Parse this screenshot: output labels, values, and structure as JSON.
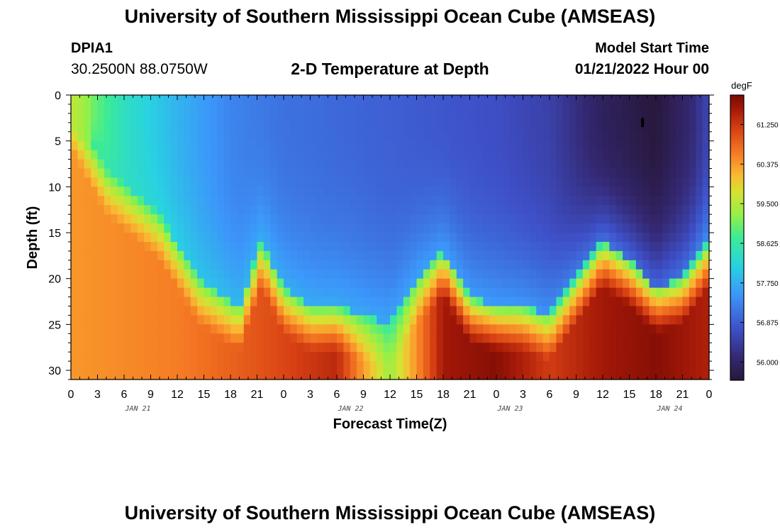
{
  "header": {
    "title": "University of Southern Mississippi Ocean Cube (AMSEAS)",
    "station_id": "DPIA1",
    "station_coords": "30.2500N  88.0750W",
    "chart_title": "2-D Temperature at Depth",
    "model_start_label": "Model Start Time",
    "model_start_value": "01/21/2022 Hour 00"
  },
  "footer": {
    "title": "University of Southern Mississippi Ocean Cube (AMSEAS)"
  },
  "chart_data": {
    "type": "heatmap",
    "title": "2-D Temperature at Depth",
    "xlabel": "Forecast Time(Z)",
    "ylabel": "Depth (ft)",
    "units": "degF",
    "x_range_hours": [
      0,
      72
    ],
    "y_range_ft": [
      0,
      31
    ],
    "x_tick_labels": [
      "0",
      "3",
      "6",
      "9",
      "12",
      "15",
      "18",
      "21",
      "0",
      "3",
      "6",
      "9",
      "12",
      "15",
      "18",
      "21",
      "0",
      "3",
      "6",
      "9",
      "12",
      "15",
      "18",
      "21",
      "0"
    ],
    "date_labels": [
      {
        "hour": 9,
        "label": "JAN 21"
      },
      {
        "hour": 33,
        "label": "JAN 22"
      },
      {
        "hour": 51,
        "label": "JAN 23"
      },
      {
        "hour": 69,
        "label": "JAN 24"
      }
    ],
    "y_ticks": [
      0,
      5,
      10,
      15,
      20,
      25,
      30
    ],
    "colorbar": {
      "min": 55.6,
      "max": 61.9,
      "tick_values": [
        61.25,
        60.375,
        59.5,
        58.625,
        57.75,
        56.875,
        56.0
      ],
      "tick_labels": [
        "61.250",
        "60.375",
        "59.500",
        "58.625",
        "57.750",
        "56.875",
        "56.000"
      ]
    },
    "thermocline_depth_ft": [
      {
        "hour": 0,
        "depth": 1
      },
      {
        "hour": 4,
        "depth": 8
      },
      {
        "hour": 10,
        "depth": 13
      },
      {
        "hour": 14.5,
        "depth": 20
      },
      {
        "hour": 19,
        "depth": 23
      },
      {
        "hour": 21.5,
        "depth": 16
      },
      {
        "hour": 24,
        "depth": 21
      },
      {
        "hour": 27,
        "depth": 23
      },
      {
        "hour": 30,
        "depth": 23
      },
      {
        "hour": 33,
        "depth": 24
      },
      {
        "hour": 36,
        "depth": 25
      },
      {
        "hour": 39,
        "depth": 20
      },
      {
        "hour": 42,
        "depth": 17
      },
      {
        "hour": 45,
        "depth": 22
      },
      {
        "hour": 48,
        "depth": 23
      },
      {
        "hour": 51,
        "depth": 23
      },
      {
        "hour": 54,
        "depth": 24
      },
      {
        "hour": 57,
        "depth": 20
      },
      {
        "hour": 60,
        "depth": 16
      },
      {
        "hour": 63,
        "depth": 18
      },
      {
        "hour": 66,
        "depth": 21
      },
      {
        "hour": 69,
        "depth": 20
      },
      {
        "hour": 72,
        "depth": 16
      }
    ],
    "surface_temp_degF": [
      {
        "hour": 0,
        "temp": 59.5
      },
      {
        "hour": 6,
        "temp": 58.4
      },
      {
        "hour": 12,
        "temp": 57.8
      },
      {
        "hour": 18,
        "temp": 57.3
      },
      {
        "hour": 24,
        "temp": 57.1
      },
      {
        "hour": 36,
        "temp": 56.9
      },
      {
        "hour": 48,
        "temp": 56.7
      },
      {
        "hour": 54,
        "temp": 56.5
      },
      {
        "hour": 57,
        "temp": 56.2
      },
      {
        "hour": 60,
        "temp": 55.9
      },
      {
        "hour": 66,
        "temp": 55.6
      },
      {
        "hour": 70,
        "temp": 56.1
      },
      {
        "hour": 72,
        "temp": 56.6
      }
    ],
    "bottom_temp_degF": [
      {
        "hour": 0,
        "temp": 60.4
      },
      {
        "hour": 12,
        "temp": 60.6
      },
      {
        "hour": 22,
        "temp": 61.0
      },
      {
        "hour": 30,
        "temp": 61.4
      },
      {
        "hour": 36,
        "temp": 59.3
      },
      {
        "hour": 42,
        "temp": 61.6
      },
      {
        "hour": 48,
        "temp": 61.8
      },
      {
        "hour": 54,
        "temp": 61.2
      },
      {
        "hour": 60,
        "temp": 61.6
      },
      {
        "hour": 66,
        "temp": 61.8
      },
      {
        "hour": 72,
        "temp": 61.5
      }
    ],
    "marker": {
      "hour": 64.5,
      "depth_from": 2.5,
      "depth_to": 3.5
    }
  }
}
